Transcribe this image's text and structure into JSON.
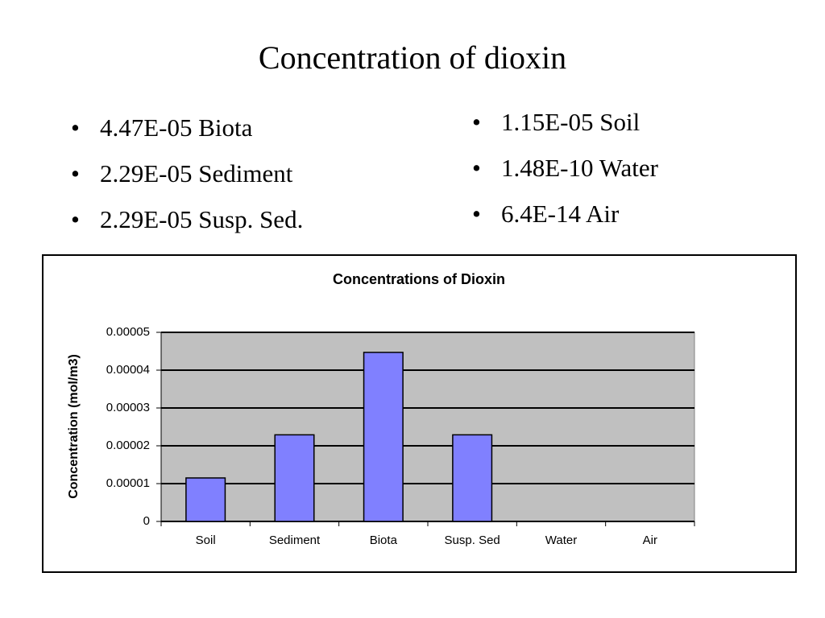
{
  "title": "Concentration of dioxin",
  "bullets_left": [
    "4.47E-05 Biota",
    "2.29E-05 Sediment",
    "2.29E-05 Susp. Sed."
  ],
  "bullets_right": [
    "1.15E-05 Soil",
    "1.48E-10 Water",
    "6.4E-14 Air"
  ],
  "chart_data": {
    "type": "bar",
    "title": "Concentrations of Dioxin",
    "y_label": "Concentration (mol/m3)",
    "categories": [
      "Soil",
      "Sediment",
      "Biota",
      "Susp. Sed",
      "Water",
      "Air"
    ],
    "values": [
      1.15e-05,
      2.29e-05,
      4.47e-05,
      2.29e-05,
      1.48e-10,
      6.4e-14
    ],
    "color": "#8080ff",
    "plot_background": "#c0c0c0",
    "ylim": [
      0,
      5e-05
    ],
    "yticks": [
      0,
      1e-05,
      2e-05,
      3e-05,
      4e-05,
      5e-05
    ],
    "grid": true
  }
}
